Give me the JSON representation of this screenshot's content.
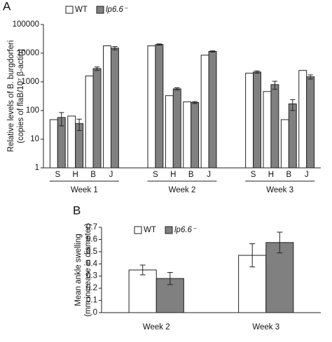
{
  "chart_data": [
    {
      "type": "bar",
      "panel_label": "A",
      "log_scale": true,
      "ylabel": [
        "Relative levels of B. burgdorferi",
        "(copies of flaB/10⁷ β-actin)"
      ],
      "categories": [
        "S",
        "H",
        "B",
        "J",
        "S",
        "H",
        "B",
        "J",
        "S",
        "H",
        "B",
        "J"
      ],
      "groups": [
        "Week 1",
        "Week 2",
        "Week 3"
      ],
      "series": [
        {
          "name": "WT",
          "color": "#ffffff",
          "values": [
            48,
            64,
            1600,
            18000,
            18000,
            330,
            200,
            8500,
            2000,
            460,
            48,
            2500
          ]
        },
        {
          "name": "lp6.6⁻",
          "color": "#808080",
          "values": [
            57,
            35,
            2900,
            15000,
            20000,
            570,
            190,
            11500,
            2200,
            800,
            170,
            1500
          ],
          "errors": [
            28,
            15,
            400,
            2000,
            1000,
            50,
            15,
            500,
            200,
            250,
            70,
            250
          ]
        }
      ],
      "ylim": [
        1,
        100000
      ],
      "yticks": [
        1,
        10,
        100,
        1000,
        10000,
        100000
      ],
      "legend": "upper left"
    },
    {
      "type": "bar",
      "panel_label": "B",
      "log_scale": false,
      "ylabel": [
        "Mean ankle swelling",
        "(mm increase in diameter)"
      ],
      "categories": [
        "Week 2",
        "Week 3"
      ],
      "series": [
        {
          "name": "WT",
          "color": "#ffffff",
          "values": [
            0.35,
            0.47
          ],
          "errors": [
            0.04,
            0.095
          ]
        },
        {
          "name": "lp6.6⁻",
          "color": "#808080",
          "values": [
            0.28,
            0.575
          ],
          "errors": [
            0.05,
            0.085
          ]
        }
      ],
      "ylim": [
        0,
        0.7
      ],
      "yticks": [
        0,
        0.1,
        0.2,
        0.3,
        0.4,
        0.5,
        0.6,
        0.7
      ],
      "legend": "upper left"
    }
  ]
}
